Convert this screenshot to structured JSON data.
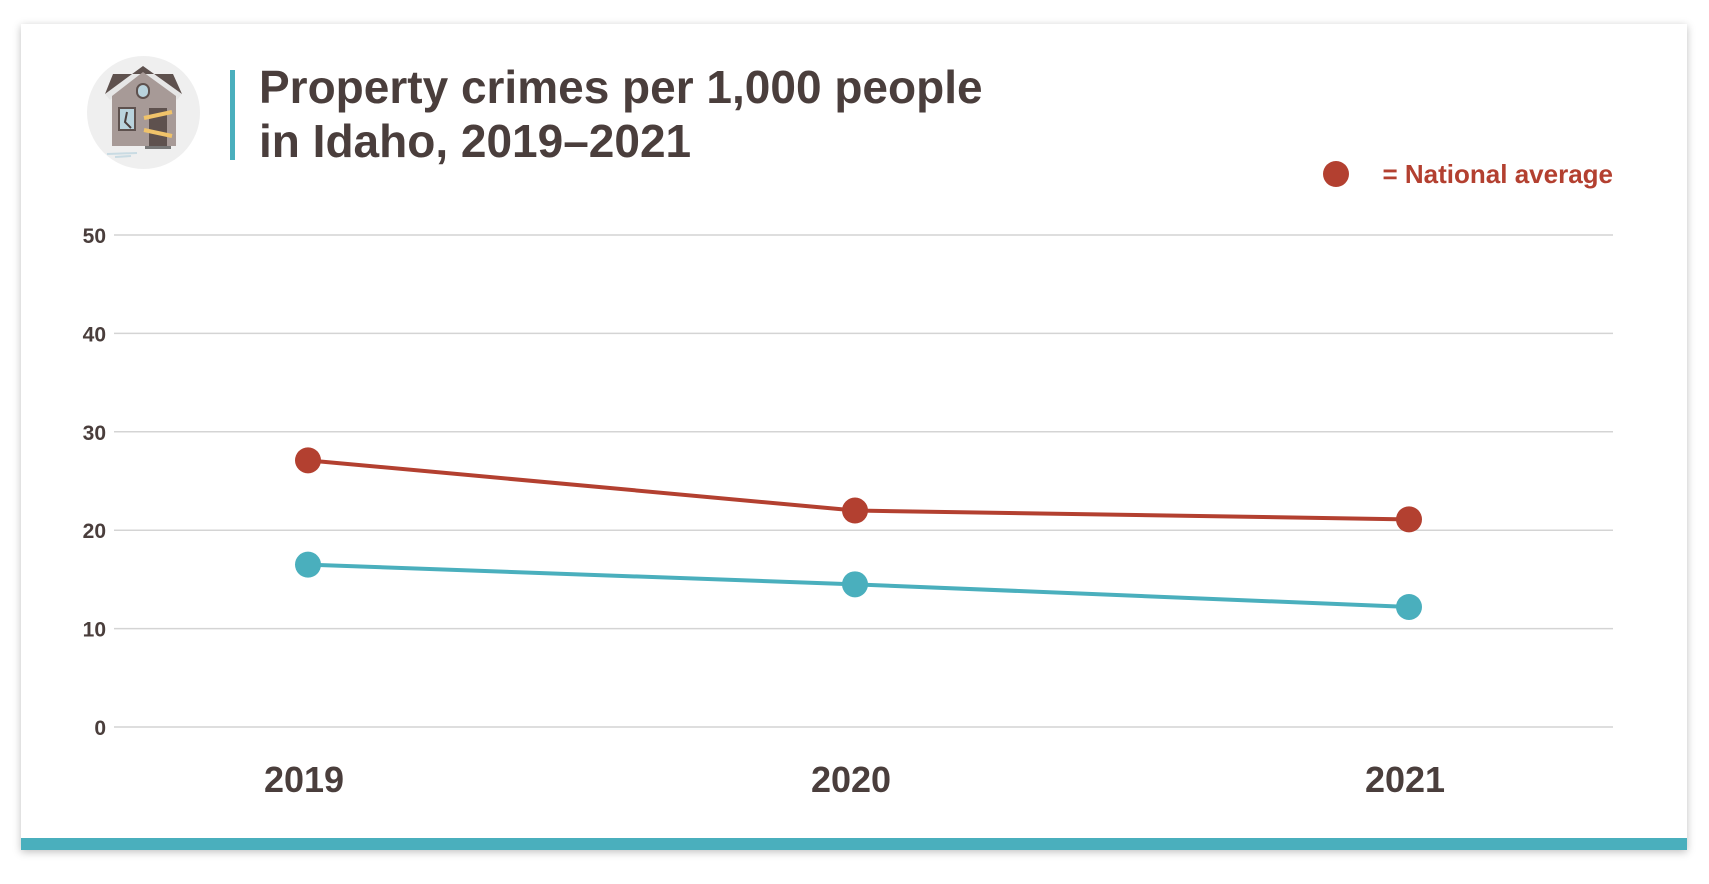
{
  "chart_data": {
    "type": "line",
    "title": "Property crimes per 1,000 people in Idaho, 2019–2021",
    "title_lines": [
      "Property crimes per 1,000 people",
      "in Idaho, 2019–2021"
    ],
    "categories": [
      "2019",
      "2020",
      "2021"
    ],
    "ylim": [
      0,
      50
    ],
    "yticks": [
      0,
      10,
      20,
      30,
      40,
      50
    ],
    "grid": true,
    "legend": {
      "text": "= National average",
      "position": "top-right"
    },
    "series": [
      {
        "name": "National average",
        "values": [
          27.1,
          22.0,
          21.1
        ],
        "color": "#b34030"
      },
      {
        "values": [
          16.5,
          14.5,
          12.2
        ],
        "color": "#4aafbd"
      }
    ]
  },
  "icon": "boarded-up-house-icon",
  "colors": {
    "accent": "#4aafbd",
    "national": "#b34030",
    "text": "#4a3e3c"
  }
}
